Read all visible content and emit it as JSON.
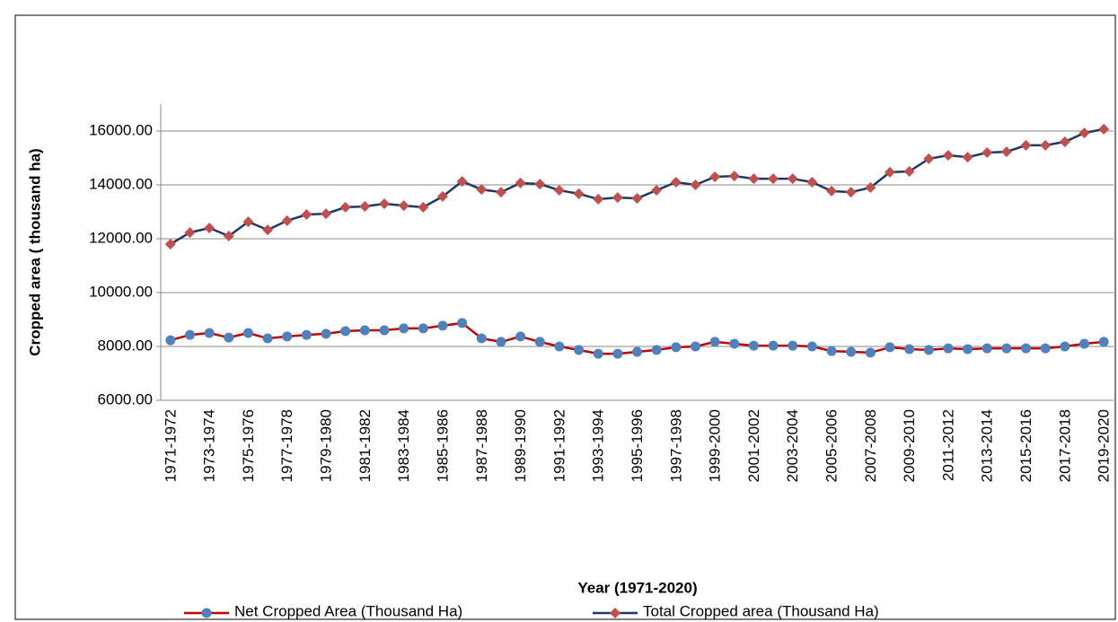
{
  "chart_data": {
    "type": "line",
    "x_label": "Year (1971-2020)",
    "y_label": "Cropped area ( thousand  ha)",
    "categories": [
      "1971-1972",
      null,
      "1973-1974",
      null,
      "1975-1976",
      null,
      "1977-1978",
      null,
      "1979-1980",
      null,
      "1981-1982",
      null,
      "1983-1984",
      null,
      "1985-1986",
      null,
      "1987-1988",
      null,
      "1989-1990",
      null,
      "1991-1992",
      null,
      "1993-1994",
      null,
      "1995-1996",
      null,
      "1997-1998",
      null,
      "1999-2000",
      null,
      "2001-2002",
      null,
      "2003-2004",
      null,
      "2005-2006",
      null,
      "2007-2008",
      null,
      "2009-2010",
      null,
      "2011-2012",
      null,
      "2013-2014",
      null,
      "2015-2016",
      null,
      "2017-2018",
      null,
      "2019-2020"
    ],
    "series": [
      {
        "name": "Net Cropped Area (Thousand Ha)",
        "color": "#c00000",
        "marker": "circle",
        "marker_color": "#4f81bd",
        "values": [
          8230,
          8430,
          8500,
          8330,
          8500,
          8300,
          8370,
          8430,
          8470,
          8570,
          8600,
          8600,
          8670,
          8670,
          8770,
          8870,
          8300,
          8170,
          8370,
          8170,
          8000,
          7870,
          7730,
          7730,
          7800,
          7870,
          7970,
          8000,
          8170,
          8100,
          8030,
          8030,
          8030,
          8000,
          7830,
          7800,
          7770,
          7970,
          7900,
          7870,
          7930,
          7900,
          7930,
          7930,
          7930,
          7930,
          8000,
          8100,
          8170
        ]
      },
      {
        "name": "Total Cropped area (Thousand Ha)",
        "color": "#1f3864",
        "marker": "diamond",
        "marker_color": "#c0504d",
        "values": [
          11800,
          12230,
          12400,
          12100,
          12630,
          12330,
          12670,
          12900,
          12930,
          13170,
          13200,
          13300,
          13230,
          13170,
          13570,
          14130,
          13830,
          13730,
          14070,
          14030,
          13800,
          13670,
          13470,
          13530,
          13500,
          13800,
          14100,
          14000,
          14300,
          14330,
          14230,
          14230,
          14230,
          14100,
          13770,
          13730,
          13900,
          14470,
          14500,
          14970,
          15100,
          15030,
          15200,
          15230,
          15470,
          15470,
          15600,
          15930,
          16070
        ]
      }
    ],
    "ylim": [
      6000,
      17000
    ],
    "yticks": [
      {
        "value": 6000,
        "label": "6000.00"
      },
      {
        "value": 8000,
        "label": "8000.00"
      },
      {
        "value": 10000,
        "label": "10000.00"
      },
      {
        "value": 12000,
        "label": "12000.00"
      },
      {
        "value": 14000,
        "label": "14000.00"
      },
      {
        "value": 16000,
        "label": "16000.00"
      }
    ],
    "grid": true
  }
}
